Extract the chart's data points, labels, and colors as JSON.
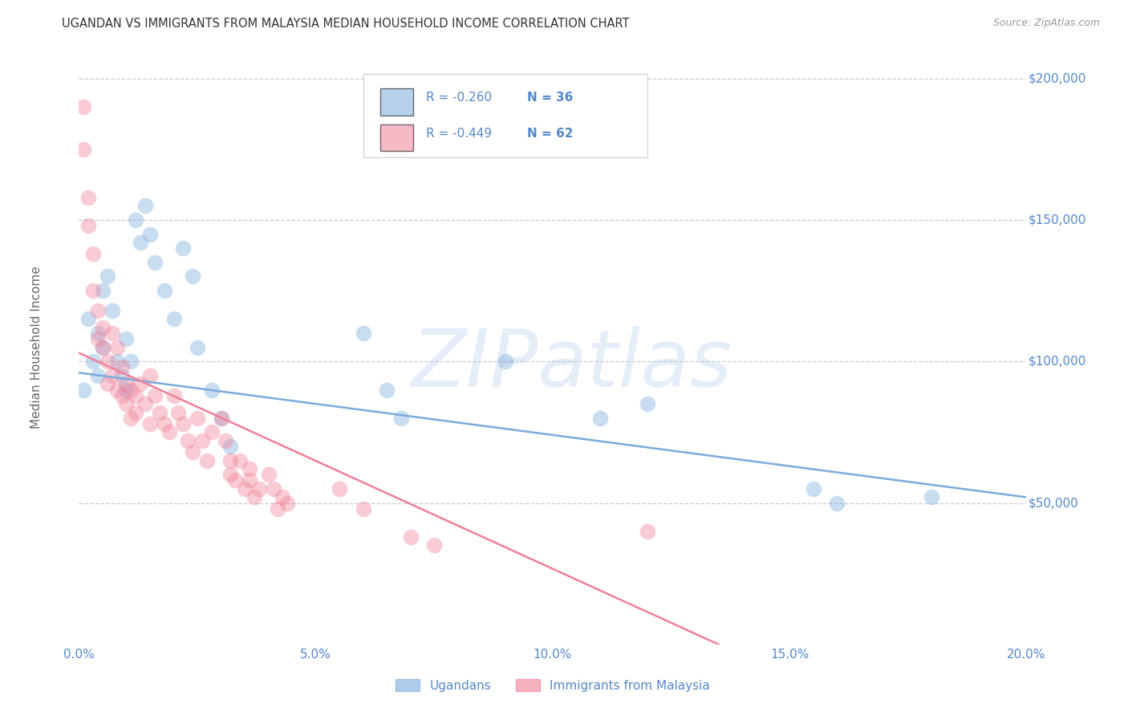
{
  "title": "UGANDAN VS IMMIGRANTS FROM MALAYSIA MEDIAN HOUSEHOLD INCOME CORRELATION CHART",
  "source": "Source: ZipAtlas.com",
  "ylabel": "Median Household Income",
  "xlim": [
    0.0,
    0.2
  ],
  "ylim": [
    0,
    210000
  ],
  "yticks": [
    50000,
    100000,
    150000,
    200000
  ],
  "ytick_labels": [
    "$50,000",
    "$100,000",
    "$150,000",
    "$200,000"
  ],
  "xticks": [
    0.0,
    0.05,
    0.1,
    0.15,
    0.2
  ],
  "xtick_labels": [
    "0.0%",
    "5.0%",
    "10.0%",
    "15.0%",
    "20.0%"
  ],
  "background_color": "#ffffff",
  "grid_color": "#cccccc",
  "axis_color": "#5588cc",
  "legend_R1": "R = -0.260",
  "legend_N1": "N = 36",
  "legend_R2": "R = -0.449",
  "legend_N2": "N = 62",
  "legend_label1": "Ugandans",
  "legend_label2": "Immigrants from Malaysia",
  "blue_color": "#7aabdc",
  "pink_color": "#f08098",
  "watermark": "ZIPatlas",
  "blue_scatter_x": [
    0.001,
    0.002,
    0.003,
    0.004,
    0.004,
    0.005,
    0.005,
    0.006,
    0.007,
    0.008,
    0.009,
    0.01,
    0.01,
    0.011,
    0.012,
    0.013,
    0.014,
    0.015,
    0.016,
    0.018,
    0.02,
    0.022,
    0.024,
    0.025,
    0.028,
    0.03,
    0.032,
    0.06,
    0.065,
    0.068,
    0.09,
    0.11,
    0.12,
    0.155,
    0.16,
    0.18
  ],
  "blue_scatter_y": [
    90000,
    115000,
    100000,
    110000,
    95000,
    125000,
    105000,
    130000,
    118000,
    100000,
    95000,
    108000,
    90000,
    100000,
    150000,
    142000,
    155000,
    145000,
    135000,
    125000,
    115000,
    140000,
    130000,
    105000,
    90000,
    80000,
    70000,
    110000,
    90000,
    80000,
    100000,
    80000,
    85000,
    55000,
    50000,
    52000
  ],
  "pink_scatter_x": [
    0.001,
    0.001,
    0.002,
    0.002,
    0.003,
    0.003,
    0.004,
    0.004,
    0.005,
    0.005,
    0.006,
    0.006,
    0.007,
    0.007,
    0.008,
    0.008,
    0.009,
    0.009,
    0.01,
    0.01,
    0.011,
    0.011,
    0.012,
    0.012,
    0.013,
    0.014,
    0.015,
    0.015,
    0.016,
    0.017,
    0.018,
    0.019,
    0.02,
    0.021,
    0.022,
    0.023,
    0.024,
    0.025,
    0.026,
    0.027,
    0.028,
    0.03,
    0.031,
    0.032,
    0.032,
    0.033,
    0.034,
    0.035,
    0.036,
    0.036,
    0.037,
    0.038,
    0.04,
    0.041,
    0.042,
    0.043,
    0.044,
    0.055,
    0.06,
    0.07,
    0.075,
    0.12
  ],
  "pink_scatter_y": [
    190000,
    175000,
    158000,
    148000,
    138000,
    125000,
    118000,
    108000,
    112000,
    105000,
    100000,
    92000,
    110000,
    95000,
    105000,
    90000,
    98000,
    88000,
    92000,
    85000,
    90000,
    80000,
    88000,
    82000,
    92000,
    85000,
    95000,
    78000,
    88000,
    82000,
    78000,
    75000,
    88000,
    82000,
    78000,
    72000,
    68000,
    80000,
    72000,
    65000,
    75000,
    80000,
    72000,
    65000,
    60000,
    58000,
    65000,
    55000,
    62000,
    58000,
    52000,
    55000,
    60000,
    55000,
    48000,
    52000,
    50000,
    55000,
    48000,
    38000,
    35000,
    40000
  ],
  "blue_line_x": [
    0.0,
    0.2
  ],
  "blue_line_y": [
    96000,
    52000
  ],
  "pink_line_x": [
    0.0,
    0.135
  ],
  "pink_line_y": [
    103000,
    0
  ],
  "marker_size": 200,
  "marker_alpha": 0.4,
  "line_width": 1.8
}
